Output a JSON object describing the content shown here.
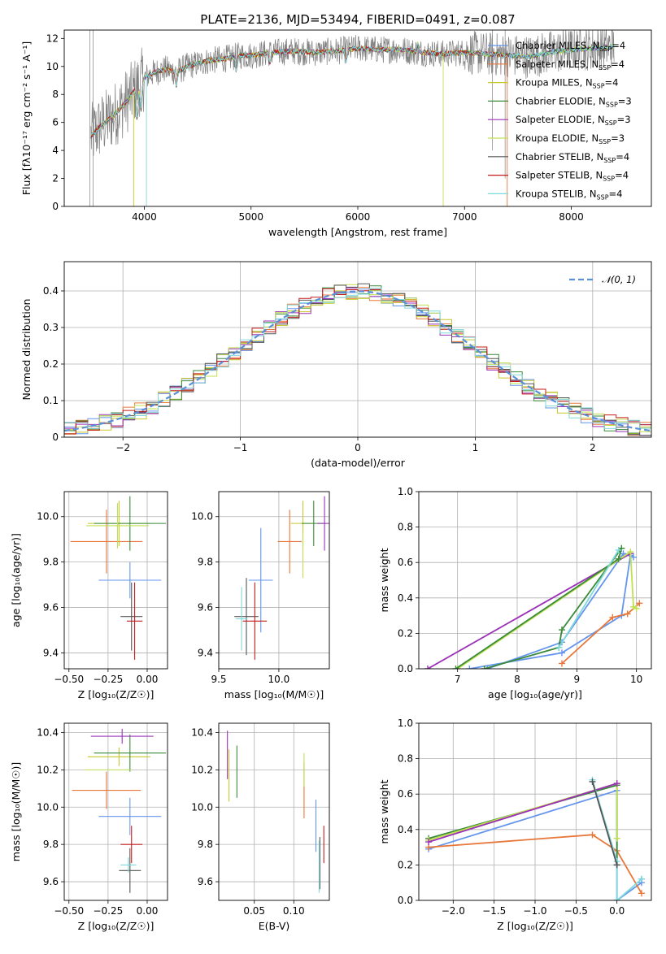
{
  "title": "PLATE=2136, MJD=53494, FIBERID=0491, z=0.087",
  "colors": [
    "#6495ed",
    "#e8773a",
    "#c8c82a",
    "#3a8a3a",
    "#9b30b8",
    "#c0e050",
    "#555555",
    "#c41a1a",
    "#7fd8dc"
  ],
  "chart_data": [
    {
      "type": "line",
      "xlabel": "wavelength [Angstrom, rest frame]",
      "ylabel": "Flux [fλ10⁻¹⁷ erg cm⁻² s⁻¹ A⁻¹]",
      "xlim": [
        3250,
        8750
      ],
      "ylim": [
        0,
        12.6
      ],
      "xticks": [
        4000,
        5000,
        6000,
        7000,
        8000
      ],
      "yticks": [
        0,
        2,
        4,
        6,
        8,
        10,
        12
      ],
      "legend_position": "right",
      "series": [
        {
          "name": "Chabrier MILES, N",
          "sub": "SSP",
          "suffix": "=4"
        },
        {
          "name": "Salpeter MILES, N",
          "sub": "SSP",
          "suffix": "=4"
        },
        {
          "name": "Kroupa MILES, N",
          "sub": "SSP",
          "suffix": "=4"
        },
        {
          "name": "Chabrier ELODIE, N",
          "sub": "SSP",
          "suffix": "=3"
        },
        {
          "name": "Salpeter ELODIE, N",
          "sub": "SSP",
          "suffix": "=3"
        },
        {
          "name": "Kroupa ELODIE, N",
          "sub": "SSP",
          "suffix": "=3"
        },
        {
          "name": "Chabrier STELIB, N",
          "sub": "SSP",
          "suffix": "=4"
        },
        {
          "name": "Salpeter STELIB, N",
          "sub": "SSP",
          "suffix": "=4"
        },
        {
          "name": "Kroupa STELIB, N",
          "sub": "SSP",
          "suffix": "=4"
        }
      ],
      "continuum": {
        "x": [
          3500,
          3600,
          3700,
          3800,
          3900,
          4000,
          4100,
          4200,
          4300,
          4400,
          4500,
          4600,
          4700,
          4800,
          4900,
          5000,
          5200,
          5400,
          5600,
          5800,
          6000,
          6200,
          6400,
          6600,
          6800,
          7000,
          7200,
          7400,
          7600,
          7800,
          8000,
          8200,
          8400
        ],
        "y": [
          5.0,
          5.8,
          6.4,
          7.2,
          8.2,
          9.2,
          9.6,
          9.8,
          9.6,
          10.0,
          10.2,
          10.4,
          10.5,
          10.6,
          10.8,
          10.8,
          11.0,
          11.1,
          11.0,
          11.1,
          11.3,
          11.2,
          11.2,
          11.0,
          10.9,
          11.0,
          10.9,
          10.8,
          10.7,
          11.0,
          11.2,
          11.3,
          11.4
        ]
      }
    },
    {
      "type": "histogram",
      "xlabel": "(data-model)/error",
      "ylabel": "Normed distribution",
      "xlim": [
        -2.5,
        2.5
      ],
      "ylim": [
        0,
        0.48
      ],
      "xticks": [
        -2,
        -1,
        0,
        1,
        2
      ],
      "yticks": [
        0.0,
        0.1,
        0.2,
        0.3,
        0.4
      ],
      "grid": true,
      "legend": {
        "label": "𝒩(0, 1)",
        "position": "top-right"
      },
      "bin_width": 0.1
    },
    {
      "type": "errorbar",
      "xlabel": "Z [log₁₀(Z/Z☉)]",
      "ylabel": "age  [log₁₀(age/yr)]",
      "xlim": [
        -0.53,
        0.13
      ],
      "ylim": [
        9.33,
        10.11
      ],
      "xticks": [
        -0.5,
        -0.25,
        0.0
      ],
      "xticklabels": [
        "−0.50",
        "−0.25",
        "0.00"
      ],
      "yticks": [
        9.4,
        9.6,
        9.8,
        10.0
      ],
      "yticklabels": [
        "9.4",
        "9.6",
        "9.8",
        "10.0"
      ],
      "grid": true,
      "points": [
        {
          "x": -0.11,
          "y": 9.72,
          "xerr": 0.2,
          "yerr": 0.08,
          "c": 0
        },
        {
          "x": -0.26,
          "y": 9.89,
          "xerr": 0.23,
          "yerr": 0.14,
          "c": 1
        },
        {
          "x": -0.18,
          "y": 9.97,
          "xerr": 0.2,
          "yerr": 0.1,
          "c": 2
        },
        {
          "x": -0.11,
          "y": 9.97,
          "xerr": 0.23,
          "yerr": 0.12,
          "c": 3
        },
        {
          "x": -0.19,
          "y": 9.96,
          "xerr": 0.2,
          "yerr": 0.1,
          "c": 5
        },
        {
          "x": -0.1,
          "y": 9.56,
          "xerr": 0.07,
          "yerr": 0.15,
          "c": 6
        },
        {
          "x": -0.08,
          "y": 9.54,
          "xerr": 0.05,
          "yerr": 0.17,
          "c": 7
        }
      ]
    },
    {
      "type": "errorbar",
      "xlabel": "mass [log₁₀(M/M☉)]",
      "ylabel": "",
      "xlim": [
        9.5,
        10.42
      ],
      "ylim": [
        9.33,
        10.11
      ],
      "xticks": [
        9.5,
        10.0
      ],
      "xticklabels": [
        "9.5",
        "10.0"
      ],
      "yticks": [
        9.4,
        9.6,
        9.8,
        10.0
      ],
      "yticklabels": [
        "9.4",
        "9.6",
        "9.8",
        "10.0"
      ],
      "grid": true,
      "points": [
        {
          "x": 9.85,
          "y": 9.72,
          "xerr": 0.1,
          "yerr": 0.23,
          "c": 0
        },
        {
          "x": 10.09,
          "y": 9.89,
          "xerr": 0.1,
          "yerr": 0.14,
          "c": 1
        },
        {
          "x": 10.2,
          "y": 9.97,
          "xerr": 0.1,
          "yerr": 0.1,
          "c": 2
        },
        {
          "x": 10.29,
          "y": 9.97,
          "xerr": 0.1,
          "yerr": 0.1,
          "c": 3
        },
        {
          "x": 10.38,
          "y": 9.97,
          "xerr": 0.06,
          "yerr": 0.12,
          "c": 4
        },
        {
          "x": 10.2,
          "y": 9.83,
          "xerr": 0.0,
          "yerr": 0.1,
          "c": 5
        },
        {
          "x": 9.73,
          "y": 9.56,
          "xerr": 0.1,
          "yerr": 0.17,
          "c": 6
        },
        {
          "x": 9.8,
          "y": 9.54,
          "xerr": 0.1,
          "yerr": 0.17,
          "c": 7
        },
        {
          "x": 9.69,
          "y": 9.55,
          "xerr": 0.05,
          "yerr": 0.14,
          "c": 8
        }
      ]
    },
    {
      "type": "line",
      "xlabel": "age  [log₁₀(age/yr)]",
      "ylabel": "mass weight",
      "xlim": [
        6.35,
        10.25
      ],
      "ylim": [
        0,
        1.0
      ],
      "xticks": [
        7,
        8,
        9,
        10
      ],
      "xticklabels": [
        "7",
        "8",
        "9",
        "10"
      ],
      "yticks": [
        0.0,
        0.2,
        0.4,
        0.6,
        0.8,
        1.0
      ],
      "yticklabels": [
        "0.0",
        "0.2",
        "0.4",
        "0.6",
        "0.8",
        "1.0"
      ],
      "grid": true,
      "series": [
        {
          "c": 0,
          "x": [
            7.2,
            8.75,
            9.75,
            9.9,
            9.95,
            9.78,
            8.75,
            7.5
          ],
          "y": [
            0.0,
            0.09,
            0.3,
            0.64,
            0.63,
            0.65,
            0.15,
            0.0
          ]
        },
        {
          "c": 1,
          "x": [
            8.75,
            9.6,
            9.85,
            10.05
          ],
          "y": [
            0.03,
            0.29,
            0.31,
            0.37
          ]
        },
        {
          "c": 4,
          "x": [
            6.5,
            9.9
          ],
          "y": [
            0.0,
            0.65
          ]
        },
        {
          "c": 5,
          "x": [
            7.0,
            9.9,
            9.95,
            10.0
          ],
          "y": [
            0.0,
            0.66,
            0.35,
            0.34
          ]
        },
        {
          "c": 3,
          "x": [
            6.97,
            9.7,
            9.75,
            8.75,
            8.7,
            7.45
          ],
          "y": [
            0.0,
            0.62,
            0.68,
            0.22,
            0.12,
            0.0
          ]
        },
        {
          "c": 8,
          "x": [
            8.7,
            9.7
          ],
          "y": [
            0.12,
            0.67
          ]
        }
      ]
    },
    {
      "type": "errorbar",
      "xlabel": "Z [log₁₀(Z/Z☉)]",
      "ylabel": "mass [log₁₀(M/M☉)]",
      "xlim": [
        -0.53,
        0.13
      ],
      "ylim": [
        9.5,
        10.45
      ],
      "xticks": [
        -0.5,
        -0.25,
        0.0
      ],
      "xticklabels": [
        "−0.50",
        "−0.25",
        "0.00"
      ],
      "yticks": [
        9.6,
        9.8,
        10.0,
        10.2,
        10.4
      ],
      "yticklabels": [
        "9.6",
        "9.8",
        "10.0",
        "10.2",
        "10.4"
      ],
      "grid": true,
      "points": [
        {
          "x": -0.11,
          "y": 9.95,
          "xerr": 0.2,
          "yerr": 0.1,
          "c": 0
        },
        {
          "x": -0.26,
          "y": 10.09,
          "xerr": 0.22,
          "yerr": 0.1,
          "c": 1
        },
        {
          "x": -0.18,
          "y": 10.27,
          "xerr": 0.2,
          "yerr": 0.05,
          "c": 2
        },
        {
          "x": -0.11,
          "y": 10.29,
          "xerr": 0.23,
          "yerr": 0.1,
          "c": 3
        },
        {
          "x": -0.16,
          "y": 10.38,
          "xerr": 0.2,
          "yerr": 0.04,
          "c": 4
        },
        {
          "x": -0.25,
          "y": 10.2,
          "xerr": 0.15,
          "yerr": 0.0,
          "c": 5
        },
        {
          "x": -0.11,
          "y": 9.66,
          "xerr": 0.07,
          "yerr": 0.12,
          "c": 6
        },
        {
          "x": -0.1,
          "y": 9.8,
          "xerr": 0.07,
          "yerr": 0.1,
          "c": 7
        },
        {
          "x": -0.12,
          "y": 9.69,
          "xerr": 0.05,
          "yerr": 0.04,
          "c": 8
        }
      ]
    },
    {
      "type": "errorbar",
      "xlabel": "E(B-V)",
      "ylabel": "",
      "xlim": [
        0.005,
        0.145
      ],
      "ylim": [
        9.5,
        10.45
      ],
      "xticks": [
        0.05,
        0.1
      ],
      "xticklabels": [
        "0.05",
        "0.10"
      ],
      "yticks": [
        9.6,
        9.8,
        10.0,
        10.2,
        10.4
      ],
      "yticklabels": [
        "9.6",
        "9.8",
        "10.0",
        "10.2",
        "10.4"
      ],
      "grid": true,
      "points": [
        {
          "x": 0.128,
          "y": 9.9,
          "xerr": 0,
          "yerr": 0.14,
          "c": 0
        },
        {
          "x": 0.113,
          "y": 10.09,
          "xerr": 0,
          "yerr": 0.15,
          "c": 1
        },
        {
          "x": 0.018,
          "y": 10.17,
          "xerr": 0,
          "yerr": 0.14,
          "c": 2
        },
        {
          "x": 0.028,
          "y": 10.19,
          "xerr": 0,
          "yerr": 0.14,
          "c": 3
        },
        {
          "x": 0.016,
          "y": 10.28,
          "xerr": 0,
          "yerr": 0.13,
          "c": 4
        },
        {
          "x": 0.113,
          "y": 10.2,
          "xerr": 0,
          "yerr": 0.09,
          "c": 5
        },
        {
          "x": 0.133,
          "y": 9.7,
          "xerr": 0,
          "yerr": 0.14,
          "c": 6
        },
        {
          "x": 0.138,
          "y": 9.8,
          "xerr": 0,
          "yerr": 0.1,
          "c": 7
        },
        {
          "x": 0.132,
          "y": 9.68,
          "xerr": 0,
          "yerr": 0.14,
          "c": 8
        }
      ]
    },
    {
      "type": "line",
      "xlabel": "Z [log₁₀(Z/Z☉)]",
      "ylabel": "mass weight",
      "xlim": [
        -2.42,
        0.42
      ],
      "ylim": [
        0,
        1.0
      ],
      "xticks": [
        -2.0,
        -1.5,
        -1.0,
        -0.5,
        0.0
      ],
      "xticklabels": [
        "−2.0",
        "−1.5",
        "−1.0",
        "−0.5",
        "0.0"
      ],
      "yticks": [
        0.0,
        0.2,
        0.4,
        0.6,
        0.8,
        1.0
      ],
      "yticklabels": [
        "0.0",
        "0.2",
        "0.4",
        "0.6",
        "0.8",
        "1.0"
      ],
      "grid": true,
      "series": [
        {
          "c": 0,
          "x": [
            -2.3,
            0.0,
            0.0,
            0.3,
            0.3
          ],
          "y": [
            0.29,
            0.62,
            0.0,
            0.1,
            0.12
          ]
        },
        {
          "c": 1,
          "x": [
            -2.3,
            -0.3,
            0.0,
            0.3
          ],
          "y": [
            0.3,
            0.37,
            0.28,
            0.04
          ]
        },
        {
          "c": 3,
          "x": [
            -2.3,
            0.0,
            0.0
          ],
          "y": [
            0.35,
            0.65,
            0.2
          ]
        },
        {
          "c": 5,
          "x": [
            -2.3,
            0.0,
            0.0
          ],
          "y": [
            0.34,
            0.66,
            0.35
          ]
        },
        {
          "c": 4,
          "x": [
            -2.3,
            0.0
          ],
          "y": [
            0.33,
            0.66
          ]
        },
        {
          "c": 8,
          "x": [
            -0.3,
            0.0,
            0.0,
            0.3
          ],
          "y": [
            0.68,
            0.22,
            0.0,
            0.12
          ]
        },
        {
          "c": 6,
          "x": [
            -0.3,
            0.0
          ],
          "y": [
            0.67,
            0.2
          ]
        }
      ]
    }
  ]
}
